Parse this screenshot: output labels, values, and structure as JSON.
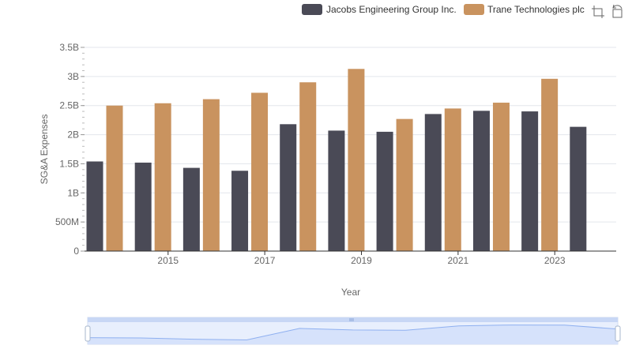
{
  "toolbar": {
    "zoom_icon": "zoom-icon",
    "reset_icon": "restore-icon"
  },
  "chart_data": {
    "type": "bar",
    "title": "",
    "xlabel": "Year",
    "ylabel": "SG&A Expenses",
    "categories": [
      "2014",
      "2015",
      "2016",
      "2017",
      "2018",
      "2019",
      "2020",
      "2021",
      "2022",
      "2023",
      "2024"
    ],
    "x_tick_labels": [
      "2015",
      "2017",
      "2019",
      "2021",
      "2023"
    ],
    "y_tick_labels": [
      "0",
      "500M",
      "1B",
      "1.5B",
      "2B",
      "2.5B",
      "3B",
      "3.5B"
    ],
    "ylim": [
      0,
      3500000000
    ],
    "grid": true,
    "legend_position": "top-right",
    "series": [
      {
        "name": "Jacobs Engineering Group Inc.",
        "color": "#4a4a56",
        "values": [
          1540000000,
          1520000000,
          1430000000,
          1380000000,
          2180000000,
          2070000000,
          2050000000,
          2355000000,
          2410000000,
          2400000000,
          2135000000
        ]
      },
      {
        "name": "Trane Technologies plc",
        "color": "#c9935f",
        "values": [
          2500000000,
          2540000000,
          2610000000,
          2720000000,
          2900000000,
          3130000000,
          2270000000,
          2450000000,
          2550000000,
          2960000000,
          null
        ]
      }
    ],
    "navigator": {
      "fill": "#d6e2fb",
      "line": "#8fb0f0"
    }
  }
}
